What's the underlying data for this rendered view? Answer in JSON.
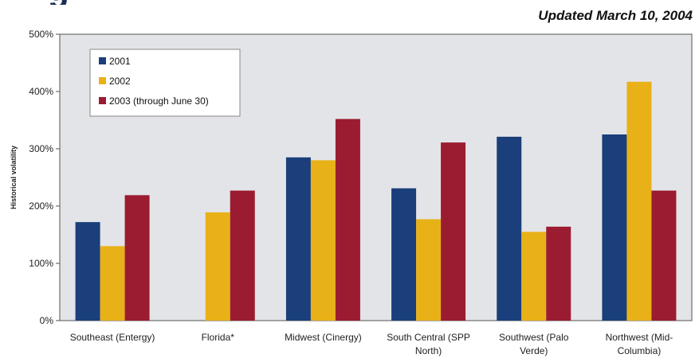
{
  "header": {
    "title_fragment": "g",
    "updated": "Updated March 10, 2004"
  },
  "chart_data": {
    "type": "bar",
    "ylabel": "Historical volatility",
    "xlabel": "",
    "ylim": [
      0,
      500
    ],
    "yticks": [
      "0%",
      "100%",
      "200%",
      "300%",
      "400%",
      "500%"
    ],
    "grid": false,
    "legend_position": "top-left",
    "categories": [
      [
        "Southeast (Entergy)"
      ],
      [
        "Florida*"
      ],
      [
        "Midwest (Cinergy)"
      ],
      [
        "South Central (SPP",
        "North)"
      ],
      [
        "Southwest (Palo",
        "Verde)"
      ],
      [
        "Northwest (Mid-",
        "Columbia)"
      ]
    ],
    "series": [
      {
        "name": "2001",
        "color": "#1a3f7a",
        "values": [
          172,
          null,
          285,
          231,
          321,
          325
        ]
      },
      {
        "name": "2002",
        "color": "#e8b118",
        "values": [
          130,
          189,
          280,
          177,
          155,
          417
        ]
      },
      {
        "name": "2003 (through June 30)",
        "color": "#9b1c31",
        "values": [
          219,
          227,
          352,
          311,
          164,
          227
        ]
      }
    ]
  }
}
